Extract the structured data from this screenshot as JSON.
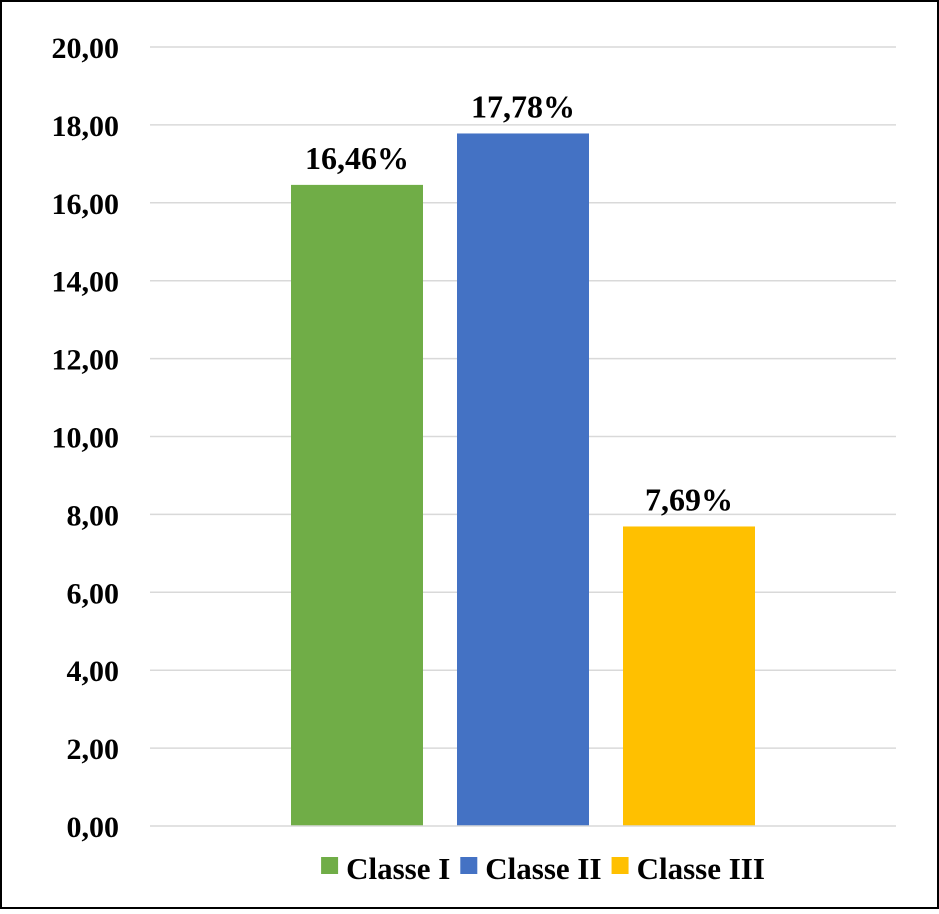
{
  "chart_data": {
    "type": "bar",
    "categories": [
      "Classe I",
      "Classe II",
      "Classe III"
    ],
    "values": [
      16.46,
      17.78,
      7.69
    ],
    "data_labels": [
      "16,46%",
      "17,78%",
      "7,69%"
    ],
    "colors": [
      "#70AD47",
      "#4472C4",
      "#FFC000"
    ],
    "ylim": [
      0,
      20
    ],
    "yticks": [
      "0,00",
      "2,00",
      "4,00",
      "6,00",
      "8,00",
      "10,00",
      "12,00",
      "14,00",
      "16,00",
      "18,00",
      "20,00"
    ],
    "grid": true,
    "legend": {
      "position": "bottom",
      "items": [
        "Classe I",
        "Classe II",
        "Classe III"
      ]
    }
  }
}
